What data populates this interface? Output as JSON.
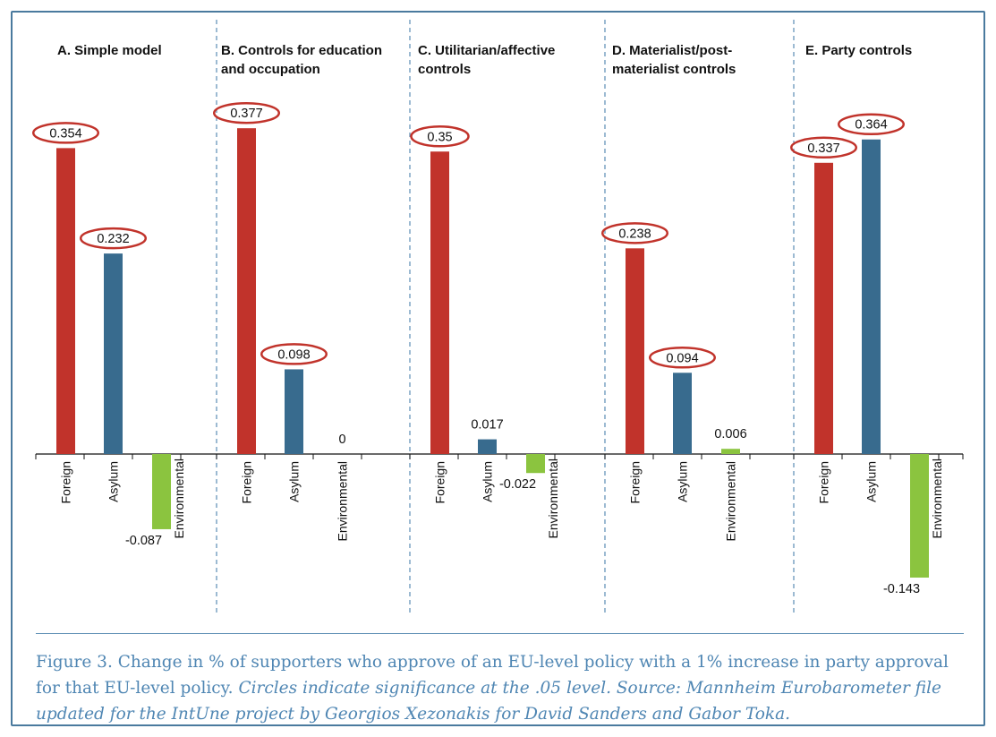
{
  "chart_data": {
    "type": "bar",
    "title": "",
    "xlabel": "",
    "ylabel": "",
    "ylim": [
      -0.143,
      0.377
    ],
    "colors": {
      "Foreign": "#c1332b",
      "Asylum": "#386b8e",
      "Environmental": "#8bc43f",
      "circle": "#c1332b",
      "axis": "#111111",
      "divider": "#5b8db3"
    },
    "panels": [
      {
        "title": "A.  Simple model",
        "categories": [
          "Foreign",
          "Asylum",
          "Environmental"
        ],
        "values": [
          0.354,
          0.232,
          -0.087
        ],
        "labels": [
          "0.354",
          "0.232",
          "-0.087"
        ],
        "significant": [
          true,
          true,
          false
        ]
      },
      {
        "title": "B.  Controls for education\nand occupation",
        "categories": [
          "Foreign",
          "Asylum",
          "Environmental"
        ],
        "values": [
          0.377,
          0.098,
          0
        ],
        "labels": [
          "0.377",
          "0.098",
          "0"
        ],
        "significant": [
          true,
          true,
          false
        ]
      },
      {
        "title": "C.  Utilitarian/affective\ncontrols",
        "categories": [
          "Foreign",
          "Asylum",
          "Environmental"
        ],
        "values": [
          0.35,
          0.017,
          -0.022
        ],
        "labels": [
          "0.35",
          "0.017",
          "-0.022"
        ],
        "significant": [
          true,
          false,
          false
        ]
      },
      {
        "title": "D.  Materialist/post-\nmaterialist controls",
        "categories": [
          "Foreign",
          "Asylum",
          "Environmental"
        ],
        "values": [
          0.238,
          0.094,
          0.006
        ],
        "labels": [
          "0.238",
          "0.094",
          "0.006"
        ],
        "significant": [
          true,
          true,
          false
        ]
      },
      {
        "title": "E.  Party controls",
        "categories": [
          "Foreign",
          "Asylum",
          "Environmental"
        ],
        "values": [
          0.337,
          0.364,
          -0.143
        ],
        "labels": [
          "0.337",
          "0.364",
          "-0.143"
        ],
        "significant": [
          true,
          true,
          false
        ]
      }
    ]
  },
  "caption": {
    "main": "Figure 3. Change in % of supporters who approve of an EU-level policy with a 1% increase in party approval for that EU-level policy.",
    "note": "Circles indicate significance at the .05 level. Source: Mannheim Eurobarometer file updated for the IntUne project by Georgios Xezonakis for David Sanders and Gabor Toka."
  }
}
